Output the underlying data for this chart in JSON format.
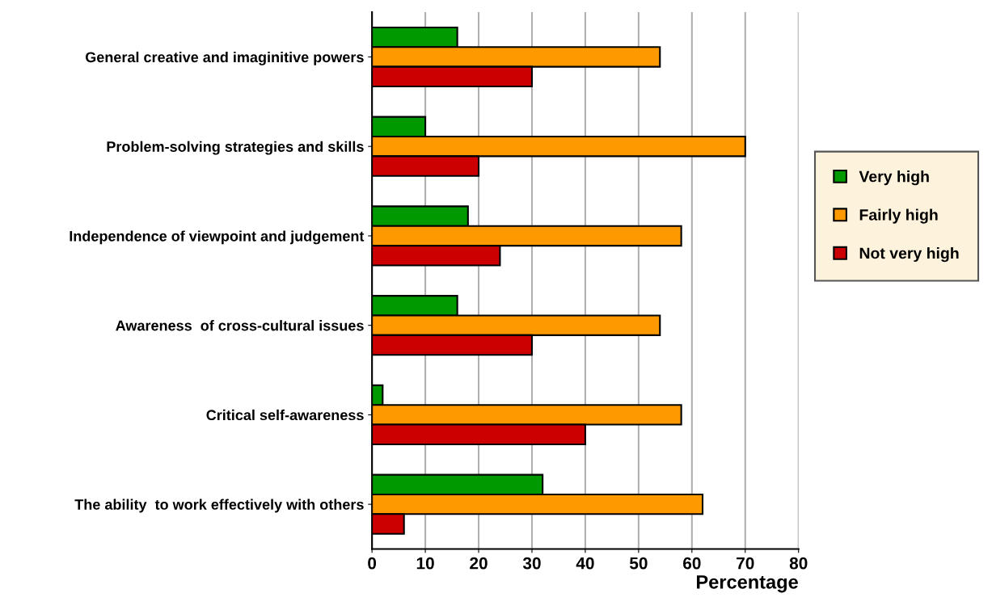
{
  "chart_data": {
    "type": "bar",
    "orientation": "horizontal",
    "xlabel": "Percentage",
    "categories": [
      "General creative and imaginitive powers",
      "Problem-solving strategies and skills",
      "Independence of viewpoint and judgement",
      "Awareness  of cross-cultural issues",
      "Critical self-awareness",
      "The ability  to work effectively with others"
    ],
    "series": [
      {
        "name": "Very high",
        "color": "#009900",
        "values": [
          16,
          10,
          18,
          16,
          2,
          32
        ]
      },
      {
        "name": "Fairly high",
        "color": "#ff9900",
        "values": [
          54,
          70,
          58,
          54,
          58,
          62
        ]
      },
      {
        "name": "Not very high",
        "color": "#cc0000",
        "values": [
          30,
          20,
          24,
          30,
          40,
          6
        ]
      }
    ],
    "xlim": [
      0,
      80
    ],
    "xticks": [
      0,
      10,
      20,
      30,
      40,
      50,
      60,
      70,
      80
    ],
    "grid": "x",
    "legend": "right"
  }
}
